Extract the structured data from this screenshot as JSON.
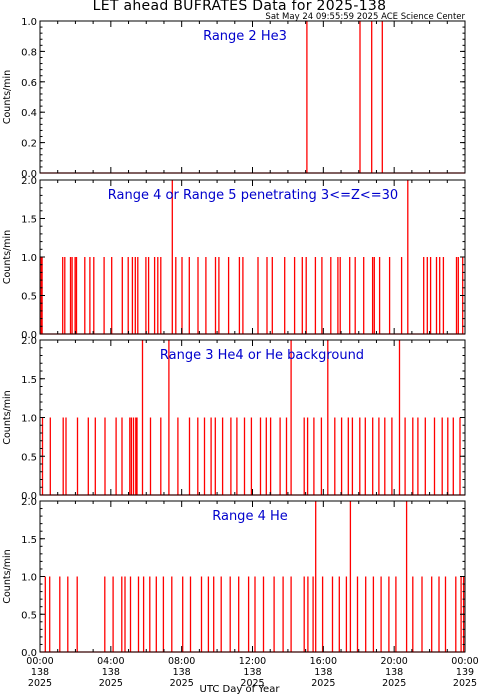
{
  "title": "LET ahead BUFRATES Data for 2025-138",
  "timestamp": "Sat May 24 09:55:59 2025 ACE Science Center",
  "xlabel": "UTC Day of Year",
  "colors": {
    "series": "#ff0000",
    "label": "#0000cc",
    "axes": "#000000"
  },
  "chart_data": [
    {
      "type": "line",
      "title": "Range 2 He3",
      "ylabel": "Counts/min",
      "ylim": [
        0,
        1.0
      ],
      "yticks": [
        "0.0",
        "0.2",
        "0.4",
        "0.6",
        "0.8",
        "1.0"
      ],
      "xlim": [
        0,
        24
      ],
      "baseline": 0,
      "spikes": [
        [
          15.07,
          1.0
        ],
        [
          18.07,
          1.0
        ],
        [
          18.73,
          1.0
        ],
        [
          19.33,
          1.0
        ]
      ]
    },
    {
      "type": "line",
      "title": "Range 4 or Range 5 penetrating 3<=Z<=30",
      "ylabel": "Counts/min",
      "ylim": [
        0,
        2.0
      ],
      "yticks": [
        "0.0",
        "0.5",
        "1.0",
        "1.5",
        "2.0"
      ],
      "xlim": [
        0,
        24
      ],
      "baseline": 0,
      "spikes": [
        [
          0.07,
          1
        ],
        [
          0.12,
          1
        ],
        [
          1.28,
          1
        ],
        [
          1.4,
          1
        ],
        [
          1.72,
          1
        ],
        [
          1.81,
          1
        ],
        [
          1.98,
          1
        ],
        [
          2.06,
          1
        ],
        [
          2.53,
          1
        ],
        [
          2.82,
          1
        ],
        [
          3.04,
          1
        ],
        [
          3.62,
          1
        ],
        [
          4.05,
          1
        ],
        [
          4.65,
          1
        ],
        [
          4.98,
          1
        ],
        [
          5.22,
          1
        ],
        [
          5.38,
          1
        ],
        [
          5.52,
          1
        ],
        [
          5.98,
          1
        ],
        [
          6.13,
          1
        ],
        [
          6.47,
          1
        ],
        [
          6.65,
          1
        ],
        [
          6.82,
          1
        ],
        [
          7.47,
          2
        ],
        [
          7.67,
          1
        ],
        [
          8.02,
          1
        ],
        [
          8.43,
          1
        ],
        [
          8.92,
          1
        ],
        [
          9.37,
          1
        ],
        [
          9.91,
          1
        ],
        [
          10.1,
          1
        ],
        [
          10.65,
          1
        ],
        [
          11.26,
          1
        ],
        [
          11.46,
          1
        ],
        [
          12.31,
          1
        ],
        [
          12.82,
          1
        ],
        [
          13.12,
          1
        ],
        [
          13.82,
          1
        ],
        [
          14.38,
          1
        ],
        [
          14.81,
          1
        ],
        [
          15.03,
          1
        ],
        [
          15.55,
          1
        ],
        [
          15.92,
          1
        ],
        [
          16.42,
          1
        ],
        [
          16.82,
          1
        ],
        [
          16.95,
          1
        ],
        [
          17.49,
          1
        ],
        [
          17.8,
          1
        ],
        [
          18.28,
          1
        ],
        [
          18.78,
          1
        ],
        [
          18.88,
          1
        ],
        [
          19.18,
          1
        ],
        [
          19.74,
          1
        ],
        [
          20.42,
          1
        ],
        [
          20.77,
          2
        ],
        [
          21.67,
          1
        ],
        [
          21.87,
          1
        ],
        [
          22.06,
          1
        ],
        [
          22.39,
          1
        ],
        [
          22.57,
          1
        ],
        [
          22.78,
          1
        ],
        [
          23.52,
          1
        ],
        [
          23.62,
          1
        ],
        [
          23.87,
          1
        ]
      ]
    },
    {
      "type": "line",
      "title": "Range 3 He4 or He background",
      "ylabel": "Counts/min",
      "ylim": [
        0,
        2.0
      ],
      "yticks": [
        "0.0",
        "0.5",
        "1.0",
        "1.5",
        "2.0"
      ],
      "xlim": [
        0,
        24
      ],
      "baseline": 0,
      "spikes": [
        [
          0.14,
          1
        ],
        [
          0.58,
          1
        ],
        [
          1.31,
          1
        ],
        [
          1.47,
          1
        ],
        [
          2.12,
          1
        ],
        [
          2.73,
          1
        ],
        [
          3.12,
          1
        ],
        [
          3.67,
          1
        ],
        [
          4.3,
          1
        ],
        [
          4.63,
          1
        ],
        [
          5.07,
          1
        ],
        [
          5.16,
          1
        ],
        [
          5.28,
          1
        ],
        [
          5.41,
          1
        ],
        [
          5.48,
          1
        ],
        [
          5.79,
          2
        ],
        [
          6.24,
          1
        ],
        [
          6.82,
          1
        ],
        [
          7.28,
          2
        ],
        [
          7.79,
          1
        ],
        [
          8.44,
          1
        ],
        [
          8.91,
          1
        ],
        [
          9.29,
          1
        ],
        [
          9.66,
          1
        ],
        [
          9.9,
          1
        ],
        [
          10.31,
          1
        ],
        [
          10.78,
          1
        ],
        [
          11.12,
          1
        ],
        [
          11.55,
          1
        ],
        [
          11.94,
          1
        ],
        [
          12.45,
          1
        ],
        [
          12.78,
          1
        ],
        [
          13.02,
          1
        ],
        [
          13.56,
          1
        ],
        [
          13.92,
          1
        ],
        [
          14.18,
          2
        ],
        [
          14.92,
          1
        ],
        [
          15.11,
          1
        ],
        [
          15.47,
          1
        ],
        [
          15.89,
          1
        ],
        [
          16.25,
          2
        ],
        [
          16.65,
          1
        ],
        [
          17.03,
          1
        ],
        [
          17.41,
          1
        ],
        [
          17.64,
          1
        ],
        [
          18.06,
          1
        ],
        [
          18.37,
          1
        ],
        [
          18.79,
          1
        ],
        [
          19.14,
          1
        ],
        [
          19.47,
          1
        ],
        [
          19.87,
          1
        ],
        [
          20.3,
          2
        ],
        [
          20.62,
          1
        ],
        [
          21.05,
          1
        ],
        [
          21.34,
          1
        ],
        [
          21.76,
          1
        ],
        [
          22.28,
          1
        ],
        [
          22.71,
          1
        ],
        [
          23.03,
          1
        ],
        [
          23.34,
          1
        ],
        [
          23.72,
          1
        ]
      ]
    },
    {
      "type": "line",
      "title": "Range 4 He",
      "ylabel": "Counts/min",
      "ylim": [
        0,
        2.0
      ],
      "yticks": [
        "0.0",
        "0.5",
        "1.0",
        "1.5",
        "2.0"
      ],
      "xlim": [
        0,
        24
      ],
      "xticks": [
        {
          "time": "00:00",
          "doy": "138",
          "year": "2025"
        },
        {
          "time": "04:00",
          "doy": "138",
          "year": "2025"
        },
        {
          "time": "08:00",
          "doy": "138",
          "year": "2025"
        },
        {
          "time": "12:00",
          "doy": "138",
          "year": "2025"
        },
        {
          "time": "16:00",
          "doy": "138",
          "year": "2025"
        },
        {
          "time": "20:00",
          "doy": "138",
          "year": "2025"
        },
        {
          "time": "00:00",
          "doy": "139",
          "year": "2025"
        }
      ],
      "baseline": 0,
      "spikes": [
        [
          0.3,
          1
        ],
        [
          0.55,
          1
        ],
        [
          1.12,
          1
        ],
        [
          1.57,
          1
        ],
        [
          2.1,
          1
        ],
        [
          3.66,
          1
        ],
        [
          4.13,
          1
        ],
        [
          4.62,
          1
        ],
        [
          4.8,
          1
        ],
        [
          5.11,
          1
        ],
        [
          5.56,
          1
        ],
        [
          5.85,
          1
        ],
        [
          6.2,
          1
        ],
        [
          6.57,
          1
        ],
        [
          6.97,
          1
        ],
        [
          7.44,
          1
        ],
        [
          8.06,
          1
        ],
        [
          8.5,
          1
        ],
        [
          9.12,
          1
        ],
        [
          9.51,
          1
        ],
        [
          9.81,
          1
        ],
        [
          10.23,
          1
        ],
        [
          10.74,
          1
        ],
        [
          11.22,
          1
        ],
        [
          11.78,
          1
        ],
        [
          12.14,
          1
        ],
        [
          12.62,
          1
        ],
        [
          13.22,
          1
        ],
        [
          13.73,
          1
        ],
        [
          14.18,
          1
        ],
        [
          14.92,
          1
        ],
        [
          15.13,
          1
        ],
        [
          15.42,
          1
        ],
        [
          15.57,
          2
        ],
        [
          15.96,
          1
        ],
        [
          16.52,
          1
        ],
        [
          16.9,
          1
        ],
        [
          17.3,
          1
        ],
        [
          17.53,
          2
        ],
        [
          17.93,
          1
        ],
        [
          18.39,
          1
        ],
        [
          18.83,
          1
        ],
        [
          19.26,
          1
        ],
        [
          19.7,
          1
        ],
        [
          20.1,
          1
        ],
        [
          20.7,
          2
        ],
        [
          21.05,
          1
        ],
        [
          21.57,
          1
        ],
        [
          22.12,
          1
        ],
        [
          22.53,
          1
        ],
        [
          22.9,
          1
        ],
        [
          23.48,
          1
        ],
        [
          23.78,
          1
        ],
        [
          23.92,
          1
        ]
      ]
    }
  ]
}
